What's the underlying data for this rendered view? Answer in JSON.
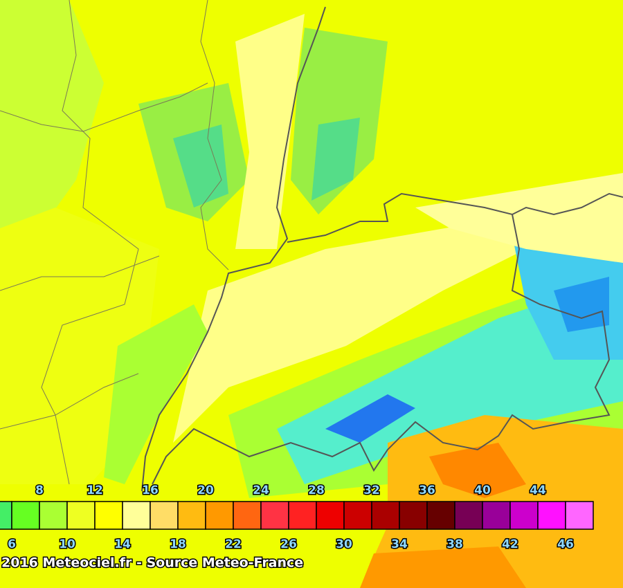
{
  "legend": {
    "labels": [
      6,
      8,
      10,
      12,
      14,
      16,
      18,
      20,
      22,
      24,
      26,
      28,
      30,
      32,
      34,
      36,
      38,
      40,
      42,
      44,
      46
    ],
    "colors": [
      "#44ee66",
      "#66ff22",
      "#aaff33",
      "#eeff22",
      "#ffff00",
      "#ffff99",
      "#ffdd66",
      "#ffbb11",
      "#ff9900",
      "#ff6611",
      "#ff3344",
      "#ff2222",
      "#ee0000",
      "#cc0000",
      "#aa0000",
      "#880000",
      "#660000",
      "#770055",
      "#990099",
      "#cc00cc",
      "#ff11ff",
      "#ff66ff"
    ]
  },
  "footer": "2016 Meteociel.fr - Source Meteo-France"
}
